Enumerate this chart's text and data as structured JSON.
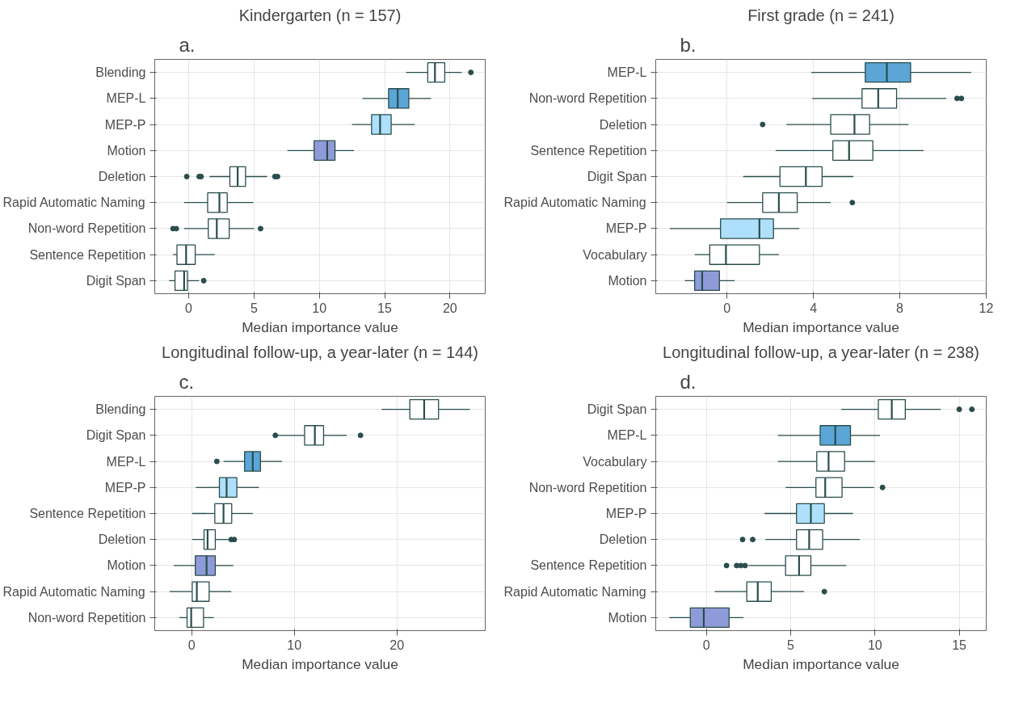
{
  "chart_data": [
    {
      "type": "box",
      "orientation": "horizontal",
      "title": "Kindergarten (n = 157)",
      "annotations": [
        "a."
      ],
      "xlabel": "Median importance value",
      "grid": true,
      "xlim": [
        -2.6,
        22.7
      ],
      "xticks": [
        0,
        5,
        10,
        15,
        20
      ],
      "categories": [
        "Blending",
        "MEP-L",
        "MEP-P",
        "Motion",
        "Deletion",
        "Rapid Automatic Naming",
        "Non-word Repetition",
        "Sentence Repetition",
        "Digit Span"
      ],
      "colors": [
        "#ffffff",
        "#5ba6d6",
        "#aee0fb",
        "#8e9bd8",
        "#ffffff",
        "#ffffff",
        "#ffffff",
        "#ffffff",
        "#ffffff"
      ],
      "boxes": [
        {
          "low": 16.65,
          "q1": 18.3,
          "median": 18.85,
          "q3": 19.6,
          "high": 20.9,
          "outliers": [
            21.6
          ]
        },
        {
          "low": 13.3,
          "q1": 15.3,
          "median": 16.0,
          "q3": 16.85,
          "high": 18.55
        },
        {
          "low": 12.5,
          "q1": 14.0,
          "median": 14.65,
          "q3": 15.5,
          "high": 17.3
        },
        {
          "low": 7.55,
          "q1": 9.6,
          "median": 10.6,
          "q3": 11.2,
          "high": 12.65
        },
        {
          "low": 1.6,
          "q1": 3.15,
          "median": 3.75,
          "q3": 4.35,
          "high": 6.0,
          "outliers": [
            -0.15,
            0.8,
            0.95,
            6.6,
            6.8
          ]
        },
        {
          "low": -0.35,
          "q1": 1.45,
          "median": 2.35,
          "q3": 2.95,
          "high": 4.95
        },
        {
          "low": -0.35,
          "q1": 1.5,
          "median": 2.15,
          "q3": 3.1,
          "high": 5.0,
          "outliers": [
            -1.2,
            -0.95,
            5.5
          ]
        },
        {
          "low": -1.2,
          "q1": -0.9,
          "median": -0.2,
          "q3": 0.5,
          "high": 2.0
        },
        {
          "low": -1.5,
          "q1": -1.05,
          "median": -0.35,
          "q3": -0.1,
          "high": 0.8,
          "outliers": [
            1.15
          ]
        }
      ]
    },
    {
      "type": "box",
      "orientation": "horizontal",
      "title": "First grade (n = 241)",
      "annotations": [
        "b."
      ],
      "xlabel": "Median importance value",
      "grid": true,
      "xlim": [
        -3.3,
        12
      ],
      "xticks": [
        0,
        4,
        8,
        12
      ],
      "categories": [
        "MEP-L",
        "Non-word Repetition",
        "Deletion",
        "Sentence Repetition",
        "Digit Span",
        "Rapid Automatic Naming",
        "MEP-P",
        "Vocabulary",
        "Motion"
      ],
      "colors": [
        "#5ba6d6",
        "#ffffff",
        "#ffffff",
        "#ffffff",
        "#ffffff",
        "#ffffff",
        "#aee0fb",
        "#ffffff",
        "#8e9bd8"
      ],
      "boxes": [
        {
          "low": 3.9,
          "q1": 6.4,
          "median": 7.4,
          "q3": 8.5,
          "high": 11.3
        },
        {
          "low": 3.95,
          "q1": 6.25,
          "median": 7.0,
          "q3": 7.85,
          "high": 10.15,
          "outliers": [
            10.65,
            10.85
          ]
        },
        {
          "low": 2.75,
          "q1": 4.8,
          "median": 5.9,
          "q3": 6.6,
          "high": 8.4,
          "outliers": [
            1.65
          ]
        },
        {
          "low": 2.25,
          "q1": 4.9,
          "median": 5.65,
          "q3": 6.75,
          "high": 9.1
        },
        {
          "low": 0.75,
          "q1": 2.45,
          "median": 3.65,
          "q3": 4.4,
          "high": 5.85
        },
        {
          "low": 0.0,
          "q1": 1.65,
          "median": 2.4,
          "q3": 3.25,
          "high": 4.8,
          "outliers": [
            5.8
          ]
        },
        {
          "low": -2.65,
          "q1": -0.3,
          "median": 1.5,
          "q3": 2.15,
          "high": 3.35
        },
        {
          "low": -1.5,
          "q1": -0.8,
          "median": -0.05,
          "q3": 1.5,
          "high": 2.4
        },
        {
          "low": -1.95,
          "q1": -1.5,
          "median": -1.15,
          "q3": -0.35,
          "high": 0.35
        }
      ]
    },
    {
      "type": "box",
      "orientation": "horizontal",
      "title": "Longitudinal follow-up, a year-later (n = 144)",
      "annotations": [
        "c."
      ],
      "xlabel": "Median importance value",
      "grid": true,
      "xlim": [
        -3.6,
        28.6
      ],
      "xticks": [
        0,
        10,
        20
      ],
      "categories": [
        "Blending",
        "Digit Span",
        "MEP-L",
        "MEP-P",
        "Sentence Repetition",
        "Deletion",
        "Motion",
        "Rapid Automatic Naming",
        "Non-word Repetition"
      ],
      "colors": [
        "#ffffff",
        "#ffffff",
        "#5ba6d6",
        "#aee0fb",
        "#ffffff",
        "#ffffff",
        "#8e9bd8",
        "#ffffff",
        "#ffffff"
      ],
      "boxes": [
        {
          "low": 18.5,
          "q1": 21.25,
          "median": 22.65,
          "q3": 24.05,
          "high": 27.1
        },
        {
          "low": 8.35,
          "q1": 11.0,
          "median": 12.0,
          "q3": 12.85,
          "high": 15.1,
          "outliers": [
            8.15,
            16.45
          ]
        },
        {
          "low": 3.1,
          "q1": 5.15,
          "median": 5.95,
          "q3": 6.7,
          "high": 8.8,
          "outliers": [
            2.45
          ]
        },
        {
          "low": 0.4,
          "q1": 2.7,
          "median": 3.4,
          "q3": 4.4,
          "high": 6.55
        },
        {
          "low": 0.05,
          "q1": 2.25,
          "median": 3.1,
          "q3": 3.9,
          "high": 5.95
        },
        {
          "low": 0.05,
          "q1": 1.2,
          "median": 1.55,
          "q3": 2.3,
          "high": 3.65,
          "outliers": [
            3.85,
            4.15
          ]
        },
        {
          "low": -1.75,
          "q1": 0.35,
          "median": 1.45,
          "q3": 2.3,
          "high": 4.05
        },
        {
          "low": -2.15,
          "q1": 0.05,
          "median": 0.5,
          "q3": 1.7,
          "high": 3.85
        },
        {
          "low": -1.2,
          "q1": -0.45,
          "median": -0.05,
          "q3": 1.15,
          "high": 2.15
        }
      ]
    },
    {
      "type": "box",
      "orientation": "horizontal",
      "title": "Longitudinal follow-up, a year-later (n = 238)",
      "annotations": [
        "d."
      ],
      "xlabel": "Median importance value",
      "grid": true,
      "xlim": [
        -3.0,
        16.6
      ],
      "xticks": [
        0,
        5,
        10,
        15
      ],
      "categories": [
        "Digit Span",
        "MEP-L",
        "Vocabulary",
        "Non-word Repetition",
        "MEP-P",
        "Deletion",
        "Sentence Repetition",
        "Rapid Automatic Naming",
        "Motion"
      ],
      "colors": [
        "#ffffff",
        "#5ba6d6",
        "#ffffff",
        "#ffffff",
        "#aee0fb",
        "#ffffff",
        "#ffffff",
        "#ffffff",
        "#8e9bd8"
      ],
      "boxes": [
        {
          "low": 8.0,
          "q1": 10.2,
          "median": 11.0,
          "q3": 11.8,
          "high": 13.9,
          "outliers": [
            15.0,
            15.75
          ]
        },
        {
          "low": 4.25,
          "q1": 6.75,
          "median": 7.65,
          "q3": 8.55,
          "high": 10.3
        },
        {
          "low": 4.25,
          "q1": 6.55,
          "median": 7.25,
          "q3": 8.2,
          "high": 10.0
        },
        {
          "low": 4.7,
          "q1": 6.5,
          "median": 7.05,
          "q3": 8.05,
          "high": 9.95,
          "outliers": [
            10.45
          ]
        },
        {
          "low": 3.45,
          "q1": 5.35,
          "median": 6.2,
          "q3": 7.0,
          "high": 8.7
        },
        {
          "low": 3.5,
          "q1": 5.35,
          "median": 6.1,
          "q3": 6.9,
          "high": 9.1,
          "outliers": [
            2.15,
            2.75
          ]
        },
        {
          "low": 2.5,
          "q1": 4.7,
          "median": 5.5,
          "q3": 6.2,
          "high": 8.3,
          "outliers": [
            1.2,
            1.8,
            2.05,
            2.3
          ]
        },
        {
          "low": 0.5,
          "q1": 2.4,
          "median": 3.05,
          "q3": 3.85,
          "high": 5.8,
          "outliers": [
            7.0
          ]
        },
        {
          "low": -2.2,
          "q1": -0.95,
          "median": -0.15,
          "q3": 1.35,
          "high": 2.2
        }
      ]
    }
  ]
}
